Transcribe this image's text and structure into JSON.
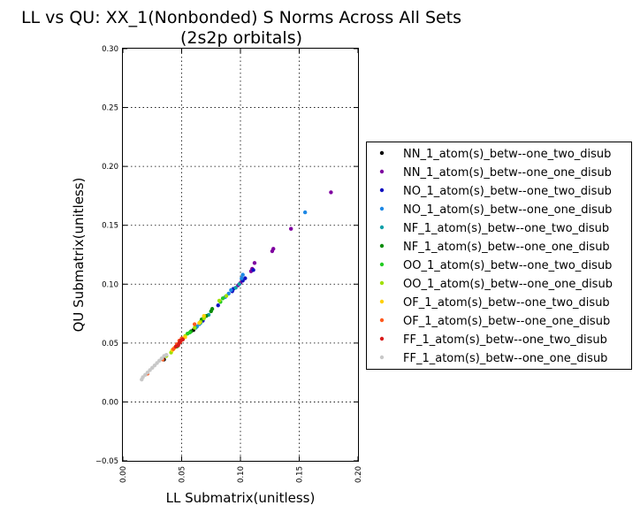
{
  "chart_data": {
    "type": "scatter",
    "title": "LL vs QU: XX_1(Nonbonded) S Norms Across All Sets",
    "subtitle": "(2s2p orbitals)",
    "xlabel": "LL Submatrix(unitless)",
    "ylabel": "QU Submatrix(unitless)",
    "xlim": [
      0.0,
      0.2
    ],
    "ylim": [
      -0.05,
      0.3
    ],
    "x_ticks": [
      "0.00",
      "0.05",
      "0.10",
      "0.15",
      "0.20"
    ],
    "y_ticks": [
      "−0.05",
      "0.00",
      "0.05",
      "0.10",
      "0.15",
      "0.20",
      "0.25",
      "0.30"
    ],
    "grid": true,
    "legend_position": "outside right",
    "series": [
      {
        "name": "NN_1_atom(s)_betw--one_two_disub",
        "color": "#000000",
        "points": [
          [
            0.035,
            0.036
          ],
          [
            0.06,
            0.061
          ]
        ]
      },
      {
        "name": "NN_1_atom(s)_betw--one_one_disub",
        "color": "#7f00a0",
        "points": [
          [
            0.177,
            0.178
          ],
          [
            0.143,
            0.147
          ],
          [
            0.128,
            0.13
          ],
          [
            0.127,
            0.128
          ],
          [
            0.112,
            0.118
          ],
          [
            0.11,
            0.113
          ],
          [
            0.109,
            0.111
          ],
          [
            0.1,
            0.101
          ],
          [
            0.098,
            0.099
          ]
        ]
      },
      {
        "name": "NO_1_atom(s)_betw--one_two_disub",
        "color": "#1010c0",
        "points": [
          [
            0.102,
            0.103
          ],
          [
            0.104,
            0.105
          ],
          [
            0.093,
            0.094
          ],
          [
            0.094,
            0.096
          ],
          [
            0.111,
            0.112
          ],
          [
            0.081,
            0.082
          ],
          [
            0.068,
            0.069
          ]
        ]
      },
      {
        "name": "NO_1_atom(s)_betw--one_one_disub",
        "color": "#1e88e5",
        "points": [
          [
            0.155,
            0.161
          ],
          [
            0.102,
            0.108
          ],
          [
            0.101,
            0.105
          ],
          [
            0.092,
            0.095
          ],
          [
            0.09,
            0.092
          ],
          [
            0.087,
            0.089
          ],
          [
            0.065,
            0.066
          ],
          [
            0.063,
            0.064
          ]
        ]
      },
      {
        "name": "NF_1_atom(s)_betw--one_two_disub",
        "color": "#11a0a8",
        "points": [
          [
            0.096,
            0.097
          ],
          [
            0.099,
            0.1
          ],
          [
            0.073,
            0.074
          ],
          [
            0.066,
            0.067
          ],
          [
            0.062,
            0.063
          ]
        ]
      },
      {
        "name": "NF_1_atom(s)_betw--one_one_disub",
        "color": "#0a8c0a",
        "points": [
          [
            0.075,
            0.077
          ],
          [
            0.076,
            0.079
          ],
          [
            0.067,
            0.07
          ],
          [
            0.071,
            0.073
          ],
          [
            0.058,
            0.06
          ],
          [
            0.047,
            0.048
          ]
        ]
      },
      {
        "name": "OO_1_atom(s)_betw--one_two_disub",
        "color": "#22cc22",
        "points": [
          [
            0.083,
            0.085
          ],
          [
            0.085,
            0.088
          ],
          [
            0.069,
            0.072
          ],
          [
            0.055,
            0.058
          ],
          [
            0.057,
            0.059
          ],
          [
            0.046,
            0.047
          ]
        ]
      },
      {
        "name": "OO_1_atom(s)_betw--one_one_disub",
        "color": "#a0e000",
        "points": [
          [
            0.088,
            0.09
          ],
          [
            0.082,
            0.086
          ],
          [
            0.069,
            0.071
          ],
          [
            0.066,
            0.068
          ],
          [
            0.061,
            0.063
          ],
          [
            0.053,
            0.056
          ],
          [
            0.041,
            0.042
          ],
          [
            0.037,
            0.039
          ]
        ]
      },
      {
        "name": "OF_1_atom(s)_betw--one_two_disub",
        "color": "#ffd000",
        "points": [
          [
            0.065,
            0.067
          ],
          [
            0.069,
            0.073
          ],
          [
            0.051,
            0.054
          ],
          [
            0.053,
            0.055
          ],
          [
            0.044,
            0.046
          ],
          [
            0.042,
            0.044
          ]
        ]
      },
      {
        "name": "OF_1_atom(s)_betw--one_one_disub",
        "color": "#ff5a1e",
        "points": [
          [
            0.049,
            0.051
          ],
          [
            0.05,
            0.054
          ],
          [
            0.048,
            0.052
          ],
          [
            0.061,
            0.066
          ],
          [
            0.046,
            0.049
          ],
          [
            0.043,
            0.045
          ],
          [
            0.034,
            0.036
          ],
          [
            0.021,
            0.024
          ]
        ]
      },
      {
        "name": "FF_1_atom(s)_betw--one_two_disub",
        "color": "#d81b1b",
        "points": [
          [
            0.049,
            0.052
          ],
          [
            0.048,
            0.05
          ],
          [
            0.051,
            0.053
          ],
          [
            0.045,
            0.047
          ],
          [
            0.047,
            0.048
          ]
        ]
      },
      {
        "name": "FF_1_atom(s)_betw--one_one_disub",
        "color": "#c8c8c8",
        "points": [
          [
            0.016,
            0.019
          ],
          [
            0.017,
            0.021
          ],
          [
            0.019,
            0.023
          ],
          [
            0.021,
            0.025
          ],
          [
            0.023,
            0.027
          ],
          [
            0.025,
            0.029
          ],
          [
            0.027,
            0.031
          ],
          [
            0.029,
            0.033
          ],
          [
            0.031,
            0.035
          ],
          [
            0.033,
            0.037
          ],
          [
            0.035,
            0.039
          ],
          [
            0.037,
            0.04
          ]
        ]
      }
    ]
  }
}
